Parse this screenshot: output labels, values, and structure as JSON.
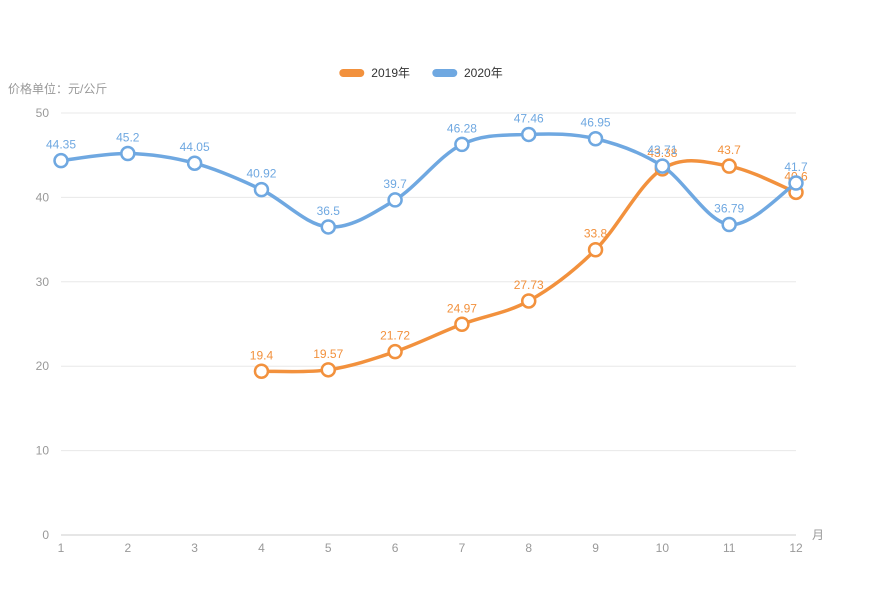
{
  "chart_data": {
    "type": "line",
    "smooth": true,
    "title": "",
    "xlabel": "月",
    "ylabel": "价格单位：元/公斤",
    "categories": [
      "1",
      "2",
      "3",
      "4",
      "5",
      "6",
      "7",
      "8",
      "9",
      "10",
      "11",
      "12"
    ],
    "ylim": [
      0,
      50
    ],
    "yticks": [
      0,
      10,
      20,
      30,
      40,
      50
    ],
    "grid": true,
    "legend_position": "top-center",
    "series": [
      {
        "name": "2019年",
        "color": "#F2913D",
        "x": [
          4,
          5,
          6,
          7,
          8,
          9,
          10,
          11,
          12
        ],
        "values": [
          19.4,
          19.57,
          21.72,
          24.97,
          27.73,
          33.8,
          43.38,
          43.7,
          40.6
        ]
      },
      {
        "name": "2020年",
        "color": "#6FA8E1",
        "x": [
          1,
          2,
          3,
          4,
          5,
          6,
          7,
          8,
          9,
          10,
          11,
          12
        ],
        "values": [
          44.35,
          45.2,
          44.05,
          40.92,
          36.5,
          39.7,
          46.28,
          47.46,
          46.95,
          43.71,
          36.79,
          41.7
        ]
      }
    ]
  },
  "colors": {
    "grid_line": "#E8E8E8",
    "axis_line": "#CCCCCC",
    "tick_text": "#999999",
    "legend_text": "#333333",
    "background": "#FFFFFF"
  }
}
